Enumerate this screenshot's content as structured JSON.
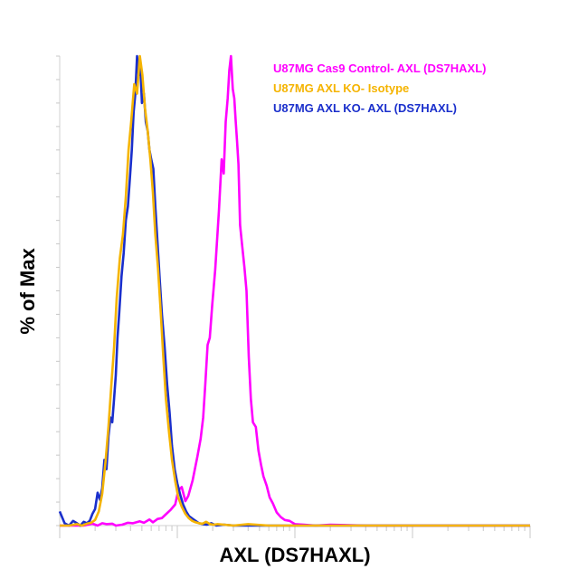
{
  "chart_data": {
    "type": "line",
    "title": "",
    "xlabel": "AXL (DS7HAXL)",
    "ylabel": "% of Max",
    "xscale": "log",
    "ylim": [
      0,
      100
    ],
    "grid": false,
    "legend_placement": "top-right",
    "tick_labels_shown": false,
    "series": [
      {
        "name": "U87MG Cas9 Control- AXL (DS7HAXL)",
        "color": "#ff00ff",
        "x": [
          1.0,
          1.6,
          1.9,
          2.1,
          2.3,
          2.5,
          2.8,
          3.0,
          3.4,
          3.8,
          4.2,
          4.8,
          5.2,
          5.8,
          6.2,
          6.8,
          7.4,
          8.0,
          8.8,
          9.6,
          10.2,
          10.9,
          11.7,
          12.4,
          13.5,
          14.8,
          15.8,
          16.6,
          17.3,
          18.1,
          18.9,
          19.8,
          21.0,
          22.6,
          23.8,
          24.8,
          25.8,
          26.8,
          27.7,
          28.6,
          29.6,
          30.5,
          31.4,
          32.2,
          33.1,
          34.2,
          35.5,
          37.2,
          38.8,
          40.5,
          42.2,
          44.0,
          46.5,
          49.0,
          51.5,
          54.0,
          57.5,
          61.0,
          65.0,
          70.0,
          76.0,
          82.0,
          90.0,
          100.0,
          120.0,
          150.0,
          200.0,
          400.0,
          1000.0,
          10000.0
        ],
        "y": [
          0,
          0,
          0.4,
          0,
          0.5,
          0.3,
          0.4,
          0,
          0.2,
          0.6,
          0.5,
          0.9,
          0.6,
          1.3,
          0.7,
          1.4,
          1.6,
          2.4,
          3.4,
          4.5,
          7.5,
          8.2,
          5.2,
          6.3,
          9.6,
          14.6,
          18.5,
          23.0,
          30.0,
          38.5,
          40.0,
          47.0,
          54.5,
          67.0,
          78.0,
          75.0,
          86.0,
          91.0,
          97.0,
          100.0,
          93.0,
          91.0,
          86.0,
          82.0,
          77.0,
          64.0,
          60.0,
          55.0,
          50.0,
          36.0,
          27.0,
          22.0,
          21.0,
          16.0,
          13.0,
          10.5,
          8.5,
          6.0,
          4.7,
          2.8,
          1.8,
          1.2,
          1.0,
          0.3,
          0.2,
          0,
          0.2,
          0,
          0,
          0
        ]
      },
      {
        "name": "U87MG AXL KO- Isotype",
        "color": "#f5b400",
        "x": [
          1.0,
          1.2,
          1.4,
          1.55,
          1.7,
          1.85,
          2.0,
          2.15,
          2.3,
          2.45,
          2.6,
          2.75,
          2.9,
          3.05,
          3.25,
          3.45,
          3.65,
          3.85,
          4.05,
          4.3,
          4.55,
          4.8,
          5.05,
          5.3,
          5.6,
          5.9,
          6.2,
          6.5,
          6.85,
          7.2,
          7.6,
          8.0,
          8.5,
          9.0,
          9.6,
          10.2,
          10.9,
          11.7,
          12.5,
          13.4,
          14.3,
          15.3,
          16.4,
          17.6,
          19.0,
          20.5,
          22.0,
          25.0,
          30.0,
          40.0,
          60.0,
          100.0,
          1000.0,
          10000.0
        ],
        "y": [
          0,
          0,
          0.3,
          0,
          0.4,
          0.6,
          1.2,
          3.0,
          6.8,
          13.5,
          21.0,
          30.0,
          38.0,
          48.5,
          57.0,
          62.0,
          70.0,
          80.0,
          86.0,
          94.0,
          92.0,
          100.0,
          96.0,
          89.0,
          84.0,
          78.0,
          71.0,
          62.0,
          55.0,
          46.0,
          36.0,
          27.0,
          20.0,
          14.0,
          9.5,
          6.0,
          4.0,
          2.5,
          1.6,
          1.0,
          0.7,
          0.5,
          0.4,
          0.8,
          0.3,
          0.2,
          0.3,
          0.2,
          0,
          0.3,
          0,
          0,
          0,
          0
        ]
      },
      {
        "name": "U87MG AXL KO- AXL (DS7HAXL)",
        "color": "#1a2fcc",
        "x": [
          1.0,
          1.1,
          1.2,
          1.3,
          1.4,
          1.5,
          1.6,
          1.7,
          1.8,
          1.9,
          2.0,
          2.1,
          2.2,
          2.3,
          2.4,
          2.5,
          2.6,
          2.7,
          2.8,
          2.9,
          3.0,
          3.1,
          3.2,
          3.35,
          3.5,
          3.65,
          3.8,
          3.95,
          4.1,
          4.25,
          4.4,
          4.55,
          4.7,
          4.85,
          5.0,
          5.2,
          5.4,
          5.6,
          5.8,
          6.0,
          6.25,
          6.5,
          6.8,
          7.1,
          7.4,
          7.8,
          8.2,
          8.6,
          9.0,
          9.5,
          10.0,
          10.6,
          11.2,
          11.9,
          12.6,
          13.4,
          14.3,
          15.3,
          16.5,
          17.8,
          19.5,
          21.5,
          25.0,
          30.0,
          40.0,
          60.0,
          100.0,
          1000.0,
          10000.0
        ],
        "y": [
          3.0,
          0.5,
          0,
          1.0,
          0.5,
          0,
          0.8,
          0.5,
          1.0,
          2.5,
          3.5,
          7.0,
          5.5,
          8.0,
          14.0,
          12.0,
          19.0,
          23.0,
          22.0,
          27.0,
          32.0,
          40.0,
          45.0,
          53.0,
          58.0,
          65.0,
          68.0,
          74.0,
          80.0,
          88.0,
          92.0,
          100.0,
          96.0,
          98.0,
          90.0,
          92.0,
          86.0,
          84.0,
          80.0,
          78.0,
          76.0,
          68.0,
          60.0,
          52.0,
          45.0,
          38.0,
          30.0,
          24.0,
          17.0,
          12.0,
          9.0,
          6.5,
          4.5,
          3.0,
          2.0,
          1.5,
          1.0,
          0.5,
          0.3,
          0.2,
          0.5,
          0,
          0.2,
          0,
          0,
          0,
          0,
          0,
          0
        ]
      }
    ]
  }
}
